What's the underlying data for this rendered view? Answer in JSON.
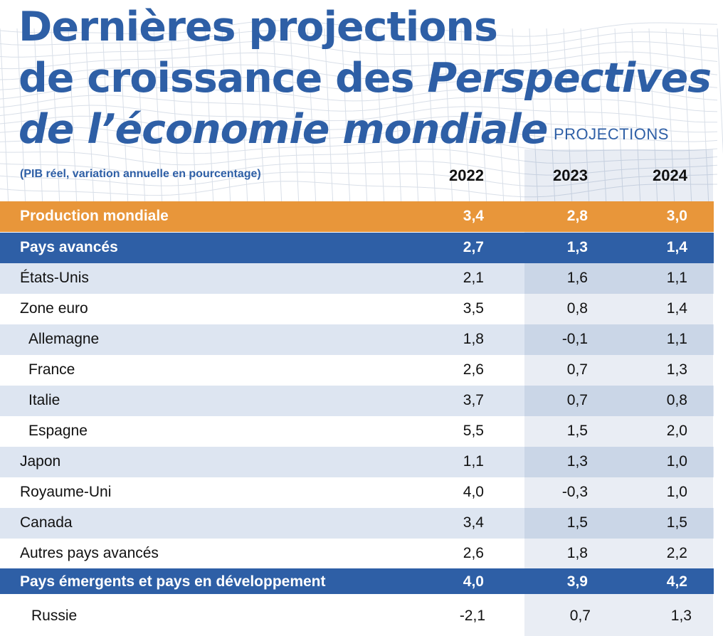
{
  "title": {
    "line1": "Dernières projections",
    "line2_plain": "de croissance des ",
    "line2_italic": "Perspectives",
    "line3": "de l’économie mondiale"
  },
  "projections_label": "PROJECTIONS",
  "subtitle": "(PIB réel, variation annuelle en pourcentage)",
  "chart_data": {
    "type": "table",
    "columns": [
      "2022",
      "2023",
      "2024"
    ],
    "rows": [
      {
        "label": "Production mondiale",
        "values": [
          "3,4",
          "2,8",
          "3,0"
        ]
      },
      {
        "label": "Pays avancés",
        "values": [
          "2,7",
          "1,3",
          "1,4"
        ]
      },
      {
        "label": "États-Unis",
        "values": [
          "2,1",
          "1,6",
          "1,1"
        ]
      },
      {
        "label": "Zone euro",
        "values": [
          "3,5",
          "0,8",
          "1,4"
        ]
      },
      {
        "label": "Allemagne",
        "values": [
          "1,8",
          "-0,1",
          "1,1"
        ]
      },
      {
        "label": "France",
        "values": [
          "2,6",
          "0,7",
          "1,3"
        ]
      },
      {
        "label": "Italie",
        "values": [
          "3,7",
          "0,7",
          "0,8"
        ]
      },
      {
        "label": "Espagne",
        "values": [
          "5,5",
          "1,5",
          "2,0"
        ]
      },
      {
        "label": "Japon",
        "values": [
          "1,1",
          "1,3",
          "1,0"
        ]
      },
      {
        "label": "Royaume-Uni",
        "values": [
          "4,0",
          "-0,3",
          "1,0"
        ]
      },
      {
        "label": "Canada",
        "values": [
          "3,4",
          "1,5",
          "1,5"
        ]
      },
      {
        "label": "Autres pays avancés",
        "values": [
          "2,6",
          "1,8",
          "2,2"
        ]
      },
      {
        "label": "Pays émergents et pays en développement",
        "values": [
          "4,0",
          "3,9",
          "4,2"
        ]
      },
      {
        "label": "Russie",
        "values": [
          "-2,1",
          "0,7",
          "1,3"
        ]
      }
    ]
  },
  "colors": {
    "title_blue": "#2e5fa6",
    "orange_row": "#e8963a",
    "blue_row": "#2e5fa6"
  }
}
